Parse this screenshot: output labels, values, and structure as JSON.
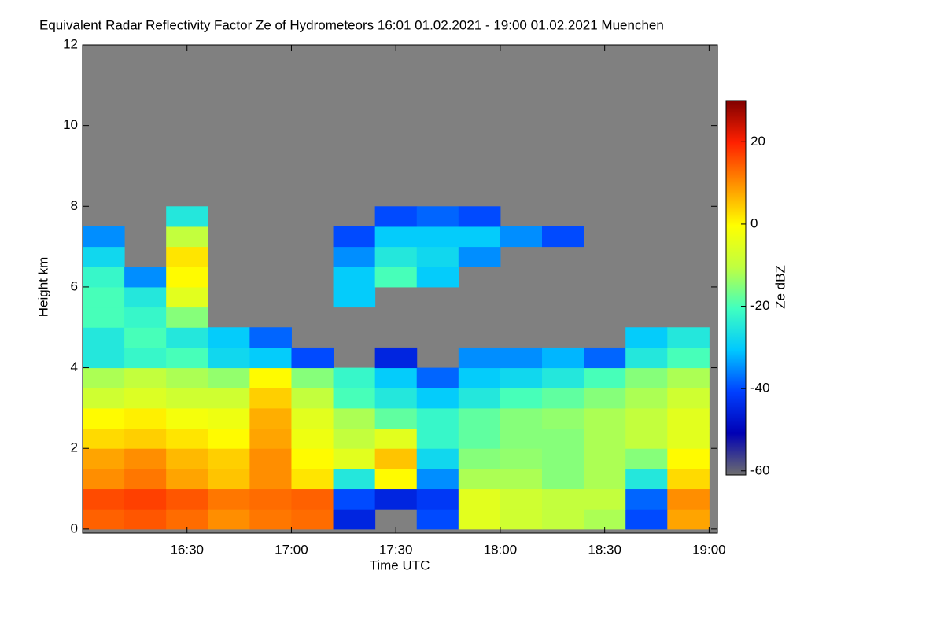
{
  "chart_data": {
    "type": "heatmap",
    "title": "Equivalent Radar Reflectivity Factor Ze of Hydrometeors   16:01 01.02.2021 - 19:00 01.02.2021 Muenchen",
    "x_label": "Time UTC",
    "y_label": "Height km",
    "colorbar_label": "Ze dBZ",
    "x": [
      16.1,
      16.3,
      16.5,
      16.7,
      16.9,
      17.1,
      17.3,
      17.5,
      17.7,
      17.9,
      18.1,
      18.3,
      18.5,
      18.7,
      18.9
    ],
    "y": [
      0.25,
      0.75,
      1.25,
      1.75,
      2.25,
      2.75,
      3.25,
      3.75,
      4.25,
      4.75,
      5.25,
      5.75,
      6.25,
      6.75,
      7.25,
      7.75
    ],
    "values": [
      [
        14,
        15,
        13,
        10,
        12,
        13,
        -45,
        null,
        -40,
        -5,
        -8,
        -10,
        -12,
        -40,
        8
      ],
      [
        16,
        17,
        15,
        12,
        13,
        14,
        -40,
        -45,
        -42,
        -5,
        -8,
        -10,
        -10,
        -38,
        10
      ],
      [
        10,
        12,
        8,
        5,
        10,
        2,
        -25,
        0,
        -35,
        -12,
        -12,
        -15,
        -12,
        -25,
        3
      ],
      [
        8,
        10,
        6,
        4,
        10,
        0,
        -5,
        5,
        -28,
        -15,
        -14,
        -15,
        -12,
        -15,
        0
      ],
      [
        3,
        4,
        2,
        0,
        8,
        -3,
        -10,
        -5,
        -22,
        -18,
        -15,
        -15,
        -12,
        -10,
        -5
      ],
      [
        0,
        1,
        -2,
        -3,
        7,
        -5,
        -12,
        -18,
        -22,
        -18,
        -15,
        -14,
        -12,
        -10,
        -5
      ],
      [
        -8,
        -6,
        -8,
        -8,
        4,
        -10,
        -20,
        -25,
        -30,
        -25,
        -20,
        -18,
        -15,
        -12,
        -8
      ],
      [
        -12,
        -10,
        -12,
        -14,
        0,
        -15,
        -22,
        -30,
        -38,
        -30,
        -28,
        -25,
        -20,
        -15,
        -12
      ],
      [
        -25,
        -22,
        -20,
        -28,
        -30,
        -40,
        null,
        -45,
        null,
        -35,
        -35,
        -32,
        -38,
        -25,
        -20
      ],
      [
        -25,
        -20,
        -25,
        -30,
        -38,
        null,
        null,
        null,
        null,
        null,
        null,
        null,
        null,
        -30,
        -25
      ],
      [
        -20,
        -22,
        -15,
        null,
        null,
        null,
        null,
        null,
        null,
        null,
        null,
        null,
        null,
        null,
        null
      ],
      [
        -20,
        -25,
        -5,
        null,
        null,
        null,
        -30,
        null,
        null,
        null,
        null,
        null,
        null,
        null,
        null
      ],
      [
        -22,
        -35,
        0,
        null,
        null,
        null,
        -30,
        -20,
        -30,
        null,
        null,
        null,
        null,
        null,
        null
      ],
      [
        -28,
        null,
        2,
        null,
        null,
        null,
        -35,
        -25,
        -28,
        -35,
        null,
        null,
        null,
        null,
        null
      ],
      [
        -35,
        null,
        -10,
        null,
        null,
        null,
        -40,
        -30,
        -30,
        -30,
        -35,
        -40,
        null,
        null,
        null
      ],
      [
        null,
        null,
        -25,
        null,
        null,
        null,
        null,
        -40,
        -38,
        -40,
        null,
        null,
        null,
        null,
        null
      ]
    ],
    "xlim": [
      16.0,
      19.04
    ],
    "ylim": [
      -0.1,
      12
    ],
    "xticks": [
      {
        "value": 16.5,
        "label": "16:30"
      },
      {
        "value": 17,
        "label": "17:00"
      },
      {
        "value": 17.5,
        "label": "17:30"
      },
      {
        "value": 18,
        "label": "18:00"
      },
      {
        "value": 18.5,
        "label": "18:30"
      },
      {
        "value": 19,
        "label": "19:00"
      }
    ],
    "yticks": [
      0,
      2,
      4,
      6,
      8,
      10,
      12
    ],
    "zlim": [
      -61,
      30
    ],
    "zticks": [
      -60,
      -40,
      -20,
      0,
      20
    ],
    "colormap": [
      "#6e6e6e",
      "#0000b4",
      "#0040ff",
      "#00c8ff",
      "#40ffc0",
      "#c0ff40",
      "#ffff00",
      "#ff9000",
      "#ff2000",
      "#800000"
    ],
    "missing_color": "#808080"
  }
}
